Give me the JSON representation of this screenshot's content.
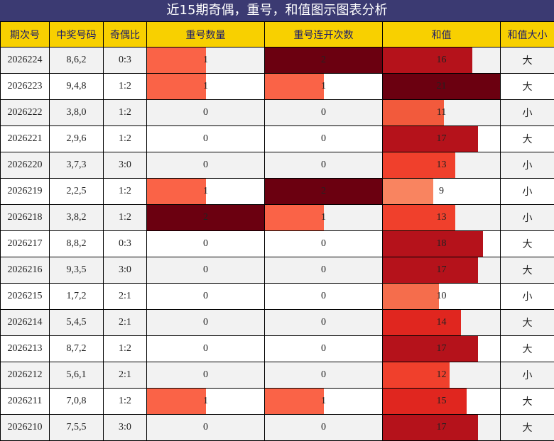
{
  "title": "近15期奇偶，重号，和值图示图表分析",
  "headers": [
    "期次号",
    "中奖号码",
    "奇偶比",
    "重号数量",
    "重号连开次数",
    "和值",
    "和值大小"
  ],
  "colors": {
    "header_bg": "#f8d000",
    "header_text": "#1b1b6b",
    "title_bg": "#3b3a72",
    "row_odd": "#f2f2f2",
    "row_even": "#ffffff"
  },
  "scales": {
    "repeat_max": 2,
    "streak_max": 2,
    "sum_max": 21
  },
  "chart_data": {
    "type": "table",
    "rows": [
      {
        "issue": "2026224",
        "numbers": "8,6,2",
        "odd_even": "0:3",
        "repeat": 1,
        "streak": 2,
        "sum": 16,
        "size": "大"
      },
      {
        "issue": "2026223",
        "numbers": "9,4,8",
        "odd_even": "1:2",
        "repeat": 1,
        "streak": 1,
        "sum": 21,
        "size": "大"
      },
      {
        "issue": "2026222",
        "numbers": "3,8,0",
        "odd_even": "1:2",
        "repeat": 0,
        "streak": 0,
        "sum": 11,
        "size": "小"
      },
      {
        "issue": "2026221",
        "numbers": "2,9,6",
        "odd_even": "1:2",
        "repeat": 0,
        "streak": 0,
        "sum": 17,
        "size": "大"
      },
      {
        "issue": "2026220",
        "numbers": "3,7,3",
        "odd_even": "3:0",
        "repeat": 0,
        "streak": 0,
        "sum": 13,
        "size": "小"
      },
      {
        "issue": "2026219",
        "numbers": "2,2,5",
        "odd_even": "1:2",
        "repeat": 1,
        "streak": 2,
        "sum": 9,
        "size": "小"
      },
      {
        "issue": "2026218",
        "numbers": "3,8,2",
        "odd_even": "1:2",
        "repeat": 2,
        "streak": 1,
        "sum": 13,
        "size": "小"
      },
      {
        "issue": "2026217",
        "numbers": "8,8,2",
        "odd_even": "0:3",
        "repeat": 0,
        "streak": 0,
        "sum": 18,
        "size": "大"
      },
      {
        "issue": "2026216",
        "numbers": "9,3,5",
        "odd_even": "3:0",
        "repeat": 0,
        "streak": 0,
        "sum": 17,
        "size": "大"
      },
      {
        "issue": "2026215",
        "numbers": "1,7,2",
        "odd_even": "2:1",
        "repeat": 0,
        "streak": 0,
        "sum": 10,
        "size": "小"
      },
      {
        "issue": "2026214",
        "numbers": "5,4,5",
        "odd_even": "2:1",
        "repeat": 0,
        "streak": 0,
        "sum": 14,
        "size": "大"
      },
      {
        "issue": "2026213",
        "numbers": "8,7,2",
        "odd_even": "1:2",
        "repeat": 0,
        "streak": 0,
        "sum": 17,
        "size": "大"
      },
      {
        "issue": "2026212",
        "numbers": "5,6,1",
        "odd_even": "2:1",
        "repeat": 0,
        "streak": 0,
        "sum": 12,
        "size": "小"
      },
      {
        "issue": "2026211",
        "numbers": "7,0,8",
        "odd_even": "1:2",
        "repeat": 1,
        "streak": 1,
        "sum": 15,
        "size": "大"
      },
      {
        "issue": "2026210",
        "numbers": "7,5,5",
        "odd_even": "3:0",
        "repeat": 0,
        "streak": 0,
        "sum": 17,
        "size": "大"
      }
    ]
  }
}
